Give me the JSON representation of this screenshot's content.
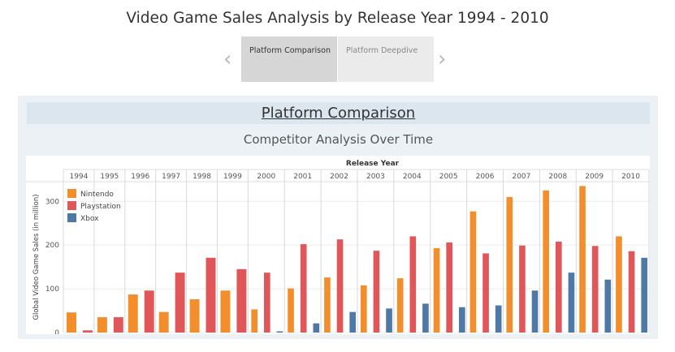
{
  "dashboard": {
    "title": "Video Game Sales Analysis by Release Year 1994 - 2010"
  },
  "story_nav": {
    "tabs": [
      {
        "label": "Platform Comparison",
        "active": true
      },
      {
        "label": "Platform Deepdive",
        "active": false
      }
    ],
    "prev_icon": "chevron-left-icon",
    "next_icon": "chevron-right-icon"
  },
  "story": {
    "title": "Platform Comparison"
  },
  "chart_data": {
    "type": "bar",
    "title": "Competitor Analysis Over Time",
    "xlabel": "Release Year",
    "ylabel": "Global Video Game Sales (in million)",
    "categories": [
      "1994",
      "1995",
      "1996",
      "1997",
      "1998",
      "1999",
      "2000",
      "2001",
      "2002",
      "2003",
      "2004",
      "2005",
      "2006",
      "2007",
      "2008",
      "2009",
      "2010"
    ],
    "series": [
      {
        "name": "Nintendo",
        "color": "#f28e2b",
        "values": [
          46,
          35,
          87,
          47,
          76,
          96,
          53,
          101,
          126,
          108,
          124,
          193,
          277,
          310,
          325,
          335,
          220
        ]
      },
      {
        "name": "Playstation",
        "color": "#e15759",
        "values": [
          5,
          35,
          96,
          137,
          171,
          145,
          137,
          202,
          213,
          187,
          220,
          206,
          181,
          199,
          208,
          198,
          186
        ]
      },
      {
        "name": "Xbox",
        "color": "#4e79a7",
        "values": [
          null,
          null,
          null,
          null,
          null,
          null,
          1,
          21,
          47,
          55,
          66,
          58,
          62,
          96,
          137,
          121,
          171
        ]
      }
    ],
    "ylim": [
      0,
      345
    ],
    "yticks": [
      0,
      100,
      200,
      300
    ],
    "grid": true,
    "legend": "top-left"
  }
}
